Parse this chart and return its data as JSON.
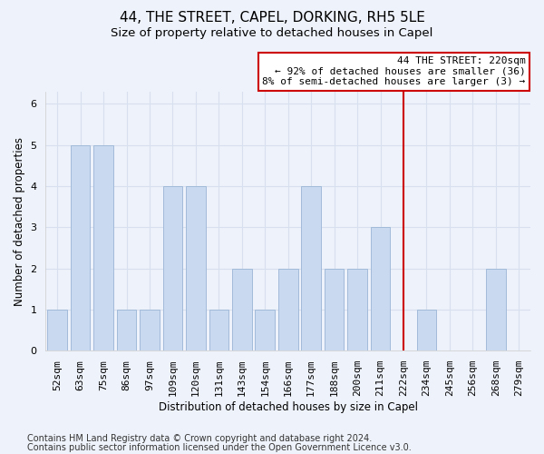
{
  "title": "44, THE STREET, CAPEL, DORKING, RH5 5LE",
  "subtitle": "Size of property relative to detached houses in Capel",
  "xlabel": "Distribution of detached houses by size in Capel",
  "ylabel": "Number of detached properties",
  "categories": [
    "52sqm",
    "63sqm",
    "75sqm",
    "86sqm",
    "97sqm",
    "109sqm",
    "120sqm",
    "131sqm",
    "143sqm",
    "154sqm",
    "166sqm",
    "177sqm",
    "188sqm",
    "200sqm",
    "211sqm",
    "222sqm",
    "234sqm",
    "245sqm",
    "256sqm",
    "268sqm",
    "279sqm"
  ],
  "values": [
    1,
    5,
    5,
    1,
    1,
    4,
    4,
    1,
    2,
    1,
    2,
    4,
    2,
    2,
    3,
    0,
    1,
    0,
    0,
    2,
    0
  ],
  "bar_color": "#c9d9f0",
  "bar_edge_color": "#9ab5d5",
  "annotation_text_line1": "44 THE STREET: 220sqm",
  "annotation_text_line2": "← 92% of detached houses are smaller (36)",
  "annotation_text_line3": "8% of semi-detached houses are larger (3) →",
  "vline_color": "#cc0000",
  "vline_x_index": 15,
  "ylim": [
    0,
    6.3
  ],
  "yticks": [
    0,
    1,
    2,
    3,
    4,
    5,
    6
  ],
  "footer_line1": "Contains HM Land Registry data © Crown copyright and database right 2024.",
  "footer_line2": "Contains public sector information licensed under the Open Government Licence v3.0.",
  "background_color": "#eef2fa",
  "grid_color": "#d8e0f0",
  "title_fontsize": 11,
  "subtitle_fontsize": 9.5,
  "axis_label_fontsize": 8.5,
  "tick_fontsize": 8,
  "annotation_fontsize": 8,
  "footer_fontsize": 7
}
